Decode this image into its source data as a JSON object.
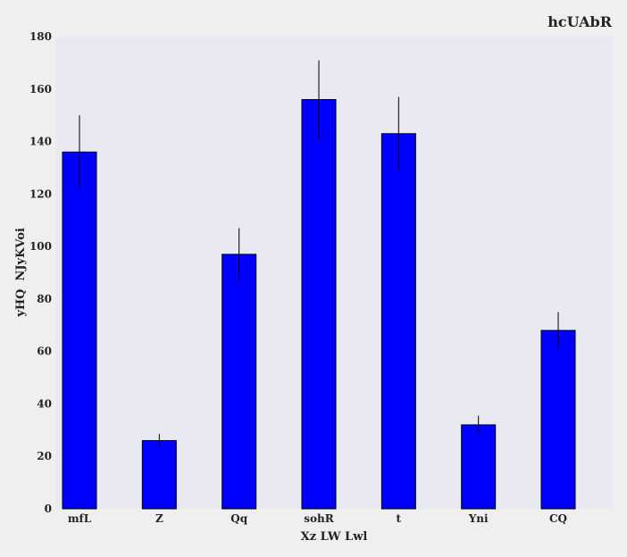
{
  "chart_data": {
    "type": "bar",
    "title": "hcUAbR",
    "xlabel": "Xz LW Lwl",
    "ylabel": "yHQ  NJyKVoi",
    "categories": [
      "mfL",
      "Z",
      "Qq",
      "sohR",
      "t",
      "Yni",
      "CQ"
    ],
    "values": [
      136,
      26,
      97,
      156,
      143,
      32,
      68
    ],
    "errors": [
      14,
      2.5,
      10,
      15,
      14,
      3.5,
      7
    ],
    "ylim": [
      0,
      180
    ],
    "yticks": [
      0,
      20,
      40,
      60,
      80,
      100,
      120,
      140,
      160,
      180
    ],
    "grid": false,
    "legend": "none",
    "colors": {
      "bar_fill": "#0000ff",
      "bar_edge": "#000000",
      "error_bar": "#000000",
      "plot_background": "#e9e9f2",
      "figure_background": "#efefef"
    }
  }
}
